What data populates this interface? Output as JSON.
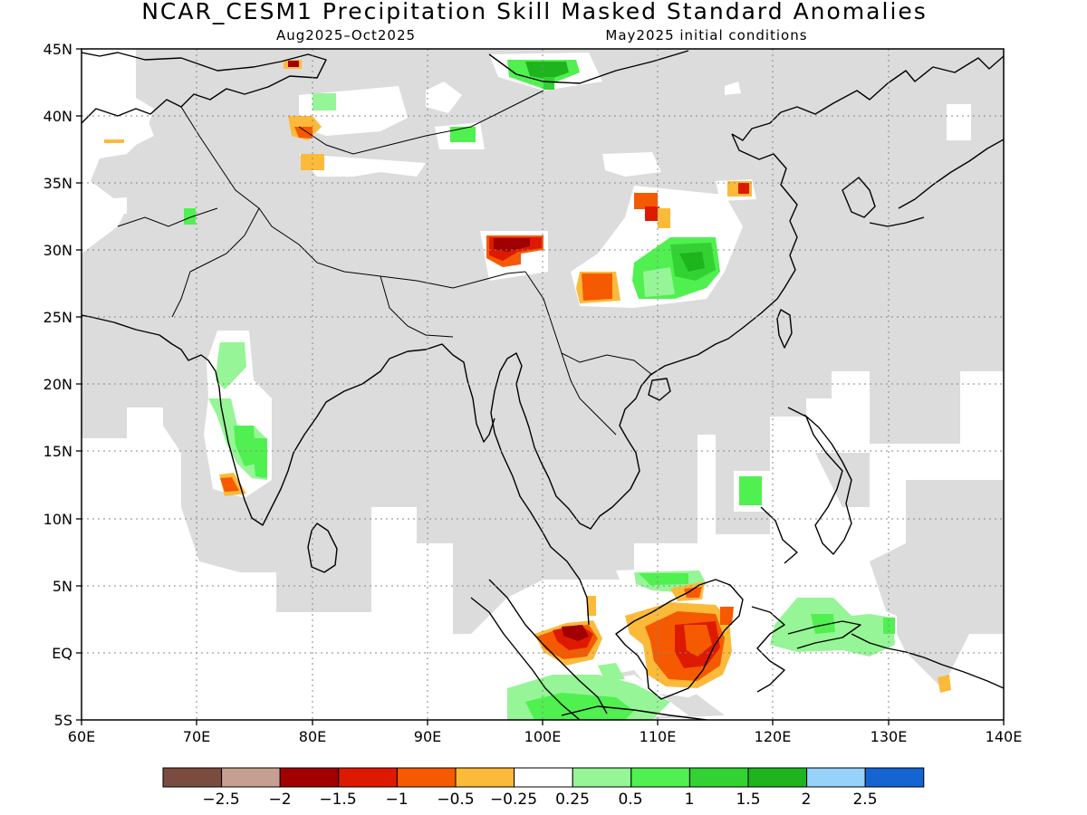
{
  "header": {
    "title": "NCAR_CESM1 Precipitation Skill Masked Standard Anomalies",
    "period": "Aug2025–Oct2025",
    "init": "May2025 initial conditions"
  },
  "map": {
    "lon_range": [
      60,
      140
    ],
    "lat_range": [
      -5,
      45
    ],
    "lon_ticks": [
      "60E",
      "70E",
      "80E",
      "90E",
      "100E",
      "110E",
      "120E",
      "130E",
      "140E"
    ],
    "lat_ticks": [
      "45N",
      "40N",
      "35N",
      "30N",
      "25N",
      "20N",
      "15N",
      "10N",
      "5N",
      "EQ",
      "5S"
    ],
    "mask_color": "#dcdcdc",
    "grid": "dotted"
  },
  "colorbar": {
    "colors": [
      "#7a4b3f",
      "#c79f92",
      "#a00000",
      "#dd1a00",
      "#f55a00",
      "#fcba3a",
      "#ffffff",
      "#96f596",
      "#50f050",
      "#32d232",
      "#1eb41e",
      "#96d2fa",
      "#1464d2"
    ],
    "labels": [
      "−2.5",
      "−2",
      "−1.5",
      "−1",
      "−0.5",
      "−0.25",
      "0.25",
      "0.5",
      "1",
      "1.5",
      "2",
      "2.5"
    ]
  }
}
